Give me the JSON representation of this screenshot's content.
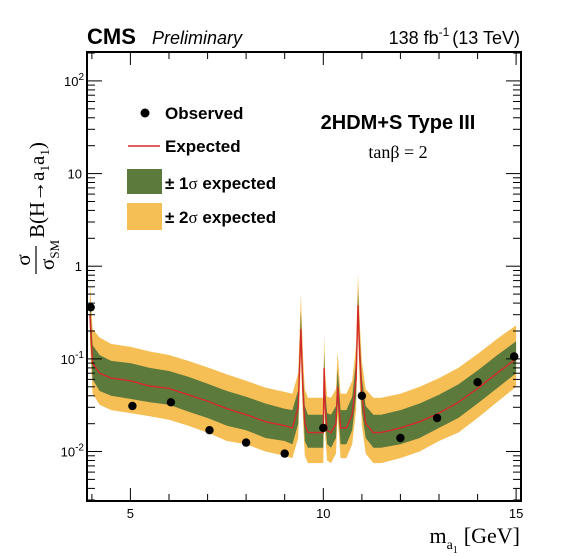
{
  "chart_data": {
    "type": "line",
    "header": {
      "experiment": "CMS",
      "status": "Preliminary",
      "lumi": "138 fb",
      "lumi_exp": "-1",
      "energy": "(13 TeV)"
    },
    "model": {
      "name": "2HDM+S Type III",
      "param": "tanβ = 2"
    },
    "xlabel": "m",
    "xlabel_sub": "a",
    "xlabel_subsub": "1",
    "xlabel_unit": "[GeV]",
    "ylabel": {
      "num": "σ",
      "den": "σ",
      "den_sub": "SM",
      "rest_pre": "B(H→a",
      "sub1": "1",
      "mid": "a",
      "sub2": "1",
      "close": ")"
    },
    "xlim": [
      3.9,
      15.1
    ],
    "ylim": [
      0.003,
      200
    ],
    "yscale": "log",
    "x_ticks": [
      5,
      10,
      15
    ],
    "x_tick_labels": [
      "5",
      "10",
      "15"
    ],
    "y_ticks": [
      0.01,
      0.1,
      1,
      10,
      100
    ],
    "y_tick_labels": [
      {
        "base": "10",
        "exp": "-2"
      },
      {
        "base": "10",
        "exp": "-1"
      },
      {
        "base": "1",
        "exp": ""
      },
      {
        "base": "10",
        "exp": ""
      },
      {
        "base": "10",
        "exp": "2"
      }
    ],
    "legend": {
      "placement": "top-left",
      "items": [
        {
          "kind": "marker",
          "label": "Observed"
        },
        {
          "kind": "line",
          "label": "Expected"
        },
        {
          "kind": "box1",
          "label_pm": "± 1",
          "label_sigma": "σ",
          "label_rest": " expected"
        },
        {
          "kind": "box2",
          "label_pm": "± 2",
          "label_sigma": "σ",
          "label_rest": " expected"
        }
      ]
    },
    "colors": {
      "expected": "#d42a2a",
      "band1": "#5d7a3d",
      "band2": "#f6bf55",
      "observed": "#000000"
    },
    "series": [
      {
        "name": "Expected",
        "x": [
          3.95,
          4.02,
          4.2,
          4.5,
          5.0,
          5.5,
          6.0,
          6.5,
          7.0,
          7.5,
          8.0,
          8.5,
          9.0,
          9.2,
          9.35,
          9.42,
          9.47,
          9.52,
          9.6,
          9.8,
          10.0,
          10.02,
          10.05,
          10.1,
          10.2,
          10.33,
          10.37,
          10.45,
          10.6,
          10.75,
          10.85,
          10.9,
          10.95,
          11.0,
          11.1,
          11.3,
          11.5,
          12.0,
          12.5,
          13.0,
          13.5,
          14.0,
          14.5,
          15.0
        ],
        "values": [
          0.3,
          0.09,
          0.07,
          0.062,
          0.058,
          0.051,
          0.048,
          0.041,
          0.035,
          0.029,
          0.025,
          0.021,
          0.019,
          0.018,
          0.03,
          0.21,
          0.05,
          0.02,
          0.016,
          0.016,
          0.016,
          0.08,
          0.03,
          0.017,
          0.016,
          0.02,
          0.05,
          0.018,
          0.018,
          0.025,
          0.06,
          0.38,
          0.1,
          0.04,
          0.02,
          0.016,
          0.016,
          0.018,
          0.021,
          0.026,
          0.034,
          0.048,
          0.07,
          0.1
        ]
      },
      {
        "name": "± 1σ expected",
        "x": [
          3.95,
          4.02,
          4.2,
          4.5,
          5.0,
          5.5,
          6.0,
          6.5,
          7.0,
          7.5,
          8.0,
          8.5,
          9.0,
          9.2,
          9.35,
          9.42,
          9.47,
          9.52,
          9.6,
          9.8,
          10.0,
          10.02,
          10.05,
          10.1,
          10.2,
          10.33,
          10.37,
          10.45,
          10.6,
          10.75,
          10.85,
          10.9,
          10.95,
          11.0,
          11.1,
          11.3,
          11.5,
          12.0,
          12.5,
          13.0,
          13.5,
          14.0,
          14.5,
          15.0
        ],
        "lower": [
          0.21,
          0.06,
          0.045,
          0.04,
          0.037,
          0.034,
          0.032,
          0.027,
          0.023,
          0.019,
          0.017,
          0.014,
          0.013,
          0.012,
          0.02,
          0.15,
          0.034,
          0.013,
          0.011,
          0.011,
          0.011,
          0.055,
          0.021,
          0.012,
          0.011,
          0.014,
          0.034,
          0.012,
          0.012,
          0.017,
          0.04,
          0.27,
          0.068,
          0.027,
          0.014,
          0.011,
          0.011,
          0.012,
          0.014,
          0.018,
          0.023,
          0.033,
          0.048,
          0.07
        ],
        "upper": [
          0.45,
          0.14,
          0.11,
          0.095,
          0.09,
          0.08,
          0.074,
          0.064,
          0.054,
          0.045,
          0.039,
          0.033,
          0.029,
          0.028,
          0.046,
          0.33,
          0.078,
          0.031,
          0.025,
          0.025,
          0.025,
          0.12,
          0.047,
          0.026,
          0.025,
          0.031,
          0.078,
          0.028,
          0.028,
          0.039,
          0.095,
          0.56,
          0.155,
          0.062,
          0.031,
          0.025,
          0.025,
          0.028,
          0.033,
          0.041,
          0.053,
          0.075,
          0.109,
          0.155
        ]
      },
      {
        "name": "± 2σ expected",
        "x": [
          3.95,
          4.02,
          4.2,
          4.5,
          5.0,
          5.5,
          6.0,
          6.5,
          7.0,
          7.5,
          8.0,
          8.5,
          9.0,
          9.2,
          9.35,
          9.42,
          9.47,
          9.52,
          9.6,
          9.8,
          10.0,
          10.02,
          10.05,
          10.1,
          10.2,
          10.33,
          10.37,
          10.45,
          10.6,
          10.75,
          10.85,
          10.9,
          10.95,
          11.0,
          11.1,
          11.3,
          11.5,
          12.0,
          12.5,
          13.0,
          13.5,
          14.0,
          14.5,
          15.0
        ],
        "lower": [
          0.15,
          0.042,
          0.032,
          0.028,
          0.026,
          0.024,
          0.022,
          0.019,
          0.016,
          0.013,
          0.012,
          0.01,
          0.009,
          0.0085,
          0.014,
          0.11,
          0.024,
          0.009,
          0.0075,
          0.0075,
          0.0075,
          0.038,
          0.015,
          0.008,
          0.0075,
          0.0095,
          0.024,
          0.0085,
          0.0085,
          0.012,
          0.028,
          0.2,
          0.048,
          0.019,
          0.0095,
          0.0075,
          0.0075,
          0.0085,
          0.01,
          0.013,
          0.016,
          0.023,
          0.034,
          0.05
        ],
        "upper": [
          0.68,
          0.21,
          0.17,
          0.145,
          0.135,
          0.12,
          0.11,
          0.095,
          0.081,
          0.068,
          0.058,
          0.049,
          0.044,
          0.042,
          0.07,
          0.5,
          0.118,
          0.047,
          0.038,
          0.038,
          0.038,
          0.18,
          0.07,
          0.039,
          0.038,
          0.047,
          0.118,
          0.042,
          0.042,
          0.058,
          0.14,
          0.82,
          0.23,
          0.094,
          0.047,
          0.038,
          0.038,
          0.042,
          0.05,
          0.062,
          0.08,
          0.113,
          0.164,
          0.23
        ]
      },
      {
        "name": "Observed",
        "x": [
          3.97,
          5.05,
          6.05,
          7.05,
          8.0,
          9.0,
          10.0,
          11.0,
          12.0,
          12.95,
          14.0,
          14.95
        ],
        "values": [
          0.36,
          0.031,
          0.034,
          0.017,
          0.0125,
          0.0095,
          0.018,
          0.04,
          0.014,
          0.023,
          0.056,
          0.106
        ]
      }
    ]
  }
}
